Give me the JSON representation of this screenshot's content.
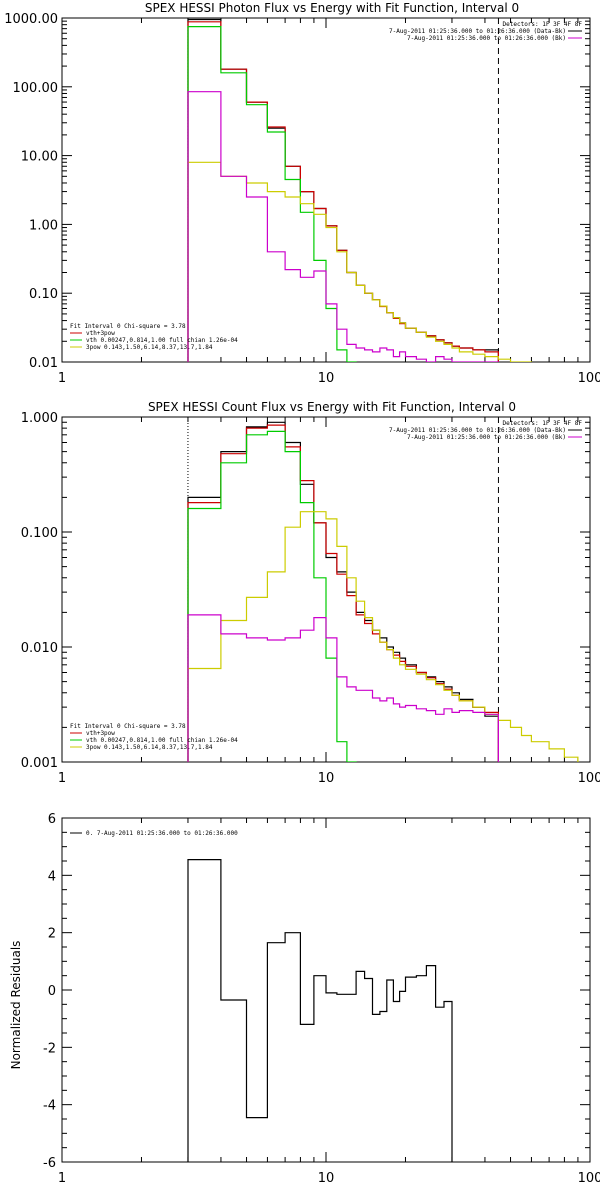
{
  "chart_data": [
    {
      "type": "line",
      "title": "SPEX HESSI Photon Flux vs Energy with Fit Function, Interval 0",
      "xscale": "log",
      "yscale": "log",
      "xlim": [
        1,
        100
      ],
      "ylim": [
        0.01,
        1000
      ],
      "x_ticks": [
        "1",
        "10",
        "100"
      ],
      "y_ticks": [
        "0.01",
        "0.10",
        "1.00",
        "10.00",
        "100.00",
        "1000.00"
      ],
      "legend_right": {
        "header": "Detectors: 1F 3F 4F 8F",
        "items": [
          {
            "label": "7-Aug-2011 01:25:36.000 to 01:26:36.000 (Data-Bk)",
            "color": "#000000"
          },
          {
            "label": "7-Aug-2011 01:25:36.000 to 01:26:36.000 (Bk)",
            "color": "#cc00cc"
          }
        ]
      },
      "legend_left": {
        "header": "Fit Interval 0   Chi-square = 3.78",
        "items": [
          {
            "label": "vth+3pow",
            "color": "#cc0000"
          },
          {
            "label": "vth 0.00247,0.814,1.00   full chian 1.26e-04",
            "color": "#00cc00"
          },
          {
            "label": "3pow 0.143,1.50,6.14,8.37,13.7,1.84",
            "color": "#cccc00"
          }
        ]
      },
      "edges": [
        3,
        4,
        5,
        6,
        7,
        8,
        9,
        10,
        11,
        12,
        13,
        14,
        15,
        16,
        17,
        18,
        19,
        20,
        22,
        24,
        26,
        28,
        30,
        32,
        36,
        40,
        45,
        50,
        55,
        60
      ],
      "series": [
        {
          "color": "#000000",
          "end_bin": 26,
          "values": [
            950,
            180,
            60,
            25,
            7,
            3,
            1.7,
            0.95,
            0.42,
            0.2,
            0.13,
            0.1,
            0.08,
            0.065,
            0.052,
            0.044,
            0.037,
            0.031,
            0.027,
            0.024,
            0.021,
            0.019,
            0.017,
            0.016,
            0.015,
            0.015
          ]
        },
        {
          "color": "#cc0000",
          "end_bin": 26,
          "values": [
            880,
            180,
            60,
            26,
            7,
            3,
            1.7,
            0.95,
            0.42,
            0.2,
            0.13,
            0.1,
            0.08,
            0.064,
            0.052,
            0.043,
            0.036,
            0.031,
            0.027,
            0.024,
            0.021,
            0.019,
            0.017,
            0.016,
            0.015,
            0.014
          ]
        },
        {
          "color": "#00cc00",
          "end_bin": 10,
          "values": [
            750,
            160,
            55,
            22,
            4.5,
            1.5,
            0.3,
            0.06,
            0.015,
            0.005
          ]
        },
        {
          "color": "#cccc00",
          "end_bin": 29,
          "values": [
            8,
            5,
            4,
            3,
            2.5,
            2,
            1.4,
            0.9,
            0.4,
            0.2,
            0.13,
            0.1,
            0.08,
            0.065,
            0.052,
            0.044,
            0.037,
            0.031,
            0.027,
            0.023,
            0.02,
            0.018,
            0.016,
            0.014,
            0.013,
            0.012,
            0.011,
            0.0095,
            0.0085
          ]
        },
        {
          "color": "#cc00cc",
          "end_bin": 26,
          "values": [
            85,
            5,
            2.5,
            0.4,
            0.22,
            0.17,
            0.21,
            0.07,
            0.03,
            0.018,
            0.016,
            0.015,
            0.014,
            0.016,
            0.015,
            0.012,
            0.014,
            0.012,
            0.011,
            0.01,
            0.012,
            0.011,
            0.01,
            0.009,
            0.009,
            0.009
          ]
        }
      ],
      "vlines": [
        {
          "x": 3,
          "style": "dotted"
        },
        {
          "x": 45,
          "style": "dashed"
        }
      ]
    },
    {
      "type": "line",
      "title": "SPEX HESSI Count Flux vs Energy with Fit Function, Interval 0",
      "xscale": "log",
      "yscale": "log",
      "xlim": [
        1,
        100
      ],
      "ylim": [
        0.001,
        1
      ],
      "x_ticks": [
        "1",
        "10",
        "100"
      ],
      "y_ticks": [
        "0.001",
        "0.010",
        "0.100",
        "1.000"
      ],
      "legend_right": {
        "header": "Detectors: 1F 3F 4F 8F",
        "items": [
          {
            "label": "7-Aug-2011 01:25:36.000 to 01:26:36.000 (Data-Bk)",
            "color": "#000000"
          },
          {
            "label": "7-Aug-2011 01:25:36.000 to 01:26:36.000 (Bk)",
            "color": "#cc00cc"
          }
        ]
      },
      "legend_left": {
        "header": "Fit Interval 0   Chi-square = 3.78",
        "items": [
          {
            "label": "vth+3pow",
            "color": "#cc0000"
          },
          {
            "label": "vth 0.00247,0.814,1.00   full chian 1.26e-04",
            "color": "#00cc00"
          },
          {
            "label": "3pow 0.143,1.50,6.14,8.37,13.7,1.84",
            "color": "#cccc00"
          }
        ]
      },
      "edges": [
        3,
        4,
        5,
        6,
        7,
        8,
        9,
        10,
        11,
        12,
        13,
        14,
        15,
        16,
        17,
        18,
        19,
        20,
        22,
        24,
        26,
        28,
        30,
        32,
        36,
        40,
        45,
        50,
        55,
        60,
        70,
        80,
        90
      ],
      "series": [
        {
          "color": "#000000",
          "end_bin": 26,
          "values": [
            0.2,
            0.5,
            0.82,
            0.9,
            0.6,
            0.26,
            0.12,
            0.06,
            0.045,
            0.03,
            0.02,
            0.017,
            0.014,
            0.012,
            0.01,
            0.009,
            0.008,
            0.007,
            0.006,
            0.0055,
            0.005,
            0.0045,
            0.004,
            0.0035,
            0.003,
            0.0025
          ]
        },
        {
          "color": "#cc0000",
          "end_bin": 26,
          "values": [
            0.18,
            0.48,
            0.8,
            0.85,
            0.55,
            0.28,
            0.12,
            0.065,
            0.043,
            0.028,
            0.019,
            0.016,
            0.013,
            0.011,
            0.0095,
            0.0085,
            0.0075,
            0.0068,
            0.006,
            0.0054,
            0.0048,
            0.0043,
            0.0038,
            0.0034,
            0.003,
            0.0027
          ]
        },
        {
          "color": "#00cc00",
          "end_bin": 10,
          "values": [
            0.16,
            0.4,
            0.7,
            0.75,
            0.5,
            0.18,
            0.04,
            0.008,
            0.0015,
            0.001
          ]
        },
        {
          "color": "#cccc00",
          "end_bin": 32,
          "values": [
            0.0065,
            0.017,
            0.027,
            0.045,
            0.11,
            0.15,
            0.15,
            0.13,
            0.075,
            0.04,
            0.025,
            0.018,
            0.014,
            0.011,
            0.0095,
            0.008,
            0.007,
            0.0064,
            0.0058,
            0.0052,
            0.0047,
            0.0042,
            0.0038,
            0.0034,
            0.003,
            0.0026,
            0.0023,
            0.002,
            0.0017,
            0.0015,
            0.0013,
            0.0011
          ]
        },
        {
          "color": "#cc00cc",
          "end_bin": 26,
          "values": [
            0.019,
            0.013,
            0.012,
            0.0115,
            0.012,
            0.014,
            0.018,
            0.012,
            0.0055,
            0.0045,
            0.0042,
            0.0042,
            0.0036,
            0.0034,
            0.0036,
            0.0032,
            0.003,
            0.0031,
            0.0029,
            0.0028,
            0.0026,
            0.0029,
            0.0027,
            0.0028,
            0.0027,
            0.0026
          ]
        }
      ],
      "vlines": [
        {
          "x": 3,
          "style": "dotted"
        },
        {
          "x": 45,
          "style": "dashed"
        }
      ]
    },
    {
      "type": "line",
      "title": "",
      "xscale": "log",
      "yscale": "linear",
      "xlim": [
        1,
        100
      ],
      "ylim": [
        -6,
        6
      ],
      "ylabel": "Normalized Residuals",
      "x_ticks": [
        "1",
        "10",
        "100"
      ],
      "y_ticks": [
        "-6",
        "-4",
        "-2",
        "0",
        "2",
        "4",
        "6"
      ],
      "legend_left": {
        "header": "",
        "items": [
          {
            "label": "0.  7-Aug-2011 01:25:36.000 to 01:26:36.000",
            "color": "#000000"
          }
        ]
      },
      "edges": [
        3,
        4,
        5,
        6,
        7,
        8,
        9,
        10,
        11,
        12,
        13,
        14,
        15,
        16,
        17,
        18,
        19,
        20,
        22,
        24,
        26,
        28,
        30,
        32,
        36,
        40,
        45
      ],
      "series": [
        {
          "color": "#000000",
          "values": [
            4.55,
            -0.35,
            -4.45,
            1.65,
            2.0,
            -1.2,
            0.5,
            -0.1,
            -0.15,
            -0.15,
            0.65,
            0.4,
            -0.85,
            -0.75,
            0.35,
            -0.4,
            -0.05,
            0.45,
            0.5,
            0.85,
            -0.6,
            -0.4
          ]
        }
      ]
    }
  ]
}
